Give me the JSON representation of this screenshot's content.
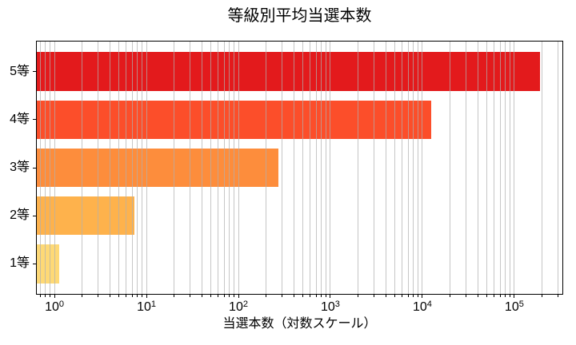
{
  "chart_data": {
    "type": "bar",
    "orientation": "horizontal",
    "title": "等級別平均当選本数",
    "xlabel": "当選本数（対数スケール）",
    "ylabel": "",
    "x_scale": "log",
    "grid": true,
    "grid_color": "#b0b0b0",
    "background": "#ffffff",
    "categories": [
      "5等",
      "4等",
      "3等",
      "2等",
      "1等"
    ],
    "values": [
      190000,
      12500,
      272,
      7.4,
      1.13
    ],
    "bar_colors": [
      "#e31a1c",
      "#fc4e2a",
      "#fd8d3c",
      "#feb24c",
      "#fed976"
    ],
    "xlim": [
      0.63,
      340000
    ],
    "bar_height_fraction": 0.8,
    "y_margin_units": 0.64,
    "x_major_ticks": [
      {
        "value": 1,
        "base": "10",
        "exp": "0"
      },
      {
        "value": 10,
        "base": "10",
        "exp": "1"
      },
      {
        "value": 100,
        "base": "10",
        "exp": "2"
      },
      {
        "value": 1000,
        "base": "10",
        "exp": "3"
      },
      {
        "value": 10000,
        "base": "10",
        "exp": "4"
      },
      {
        "value": 100000,
        "base": "10",
        "exp": "5"
      }
    ]
  }
}
